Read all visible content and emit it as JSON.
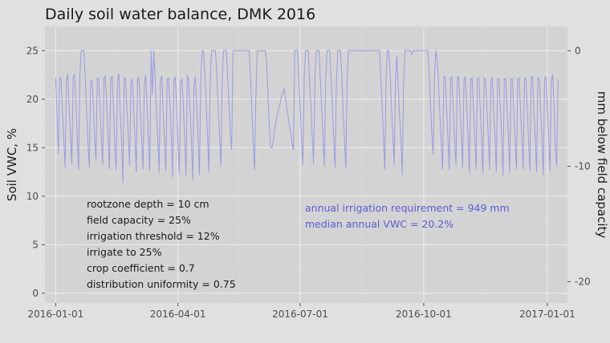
{
  "chart_data": {
    "type": "line",
    "title": "Daily soil water balance,   DMK 2016",
    "xlabel": "",
    "ylabel": "Soil VWC, %",
    "y2label": "mm below field capacity",
    "x_ticks": [
      "2016-01-01",
      "2016-04-01",
      "2016-07-01",
      "2016-10-01",
      "2017-01-01"
    ],
    "y_ticks": [
      0,
      5,
      10,
      15,
      20,
      25
    ],
    "y2_ticks": [
      0,
      -10,
      -20
    ],
    "xlim": [
      "2015-12-24",
      "2017-01-16"
    ],
    "ylim": [
      -1,
      27.5
    ],
    "y2_mapping": "y2 = (VWC - 25) * 0.84",
    "grid": true,
    "line_color": "#9a9ae6",
    "annotations_left": [
      "rootzone depth = 10 cm",
      "field capacity = 25%",
      "irrigation threshold = 12%",
      "irrigate to 25%",
      "crop coefficient = 0.7",
      "distribution uniformity = 0.75"
    ],
    "annotations_right": [
      "annual irrigation requirement = 949 mm",
      "median annual VWC = 20.2%"
    ],
    "annotation_right_color": "#5c5cd6",
    "series": [
      {
        "x_start": "2016-01-01",
        "x_end": "2016-12-31",
        "values": [
          22.2,
          18.4,
          14.4,
          22.2,
          22.2,
          18.9,
          16,
          13,
          21.9,
          22.6,
          19.2,
          16.4,
          13.3,
          22.2,
          22.6,
          19.7,
          16.3,
          12.7,
          22.5,
          25,
          25,
          25,
          22.2,
          18.8,
          15.7,
          12.9,
          21.9,
          21.9,
          19.7,
          16.1,
          13.7,
          22.2,
          22,
          19.4,
          15.7,
          13.3,
          22.2,
          22.4,
          19.3,
          16.3,
          12.8,
          22.1,
          22.4,
          19.2,
          15.3,
          12.7,
          21.9,
          22.6,
          18.8,
          15.9,
          11.4,
          22.2,
          22.1,
          19.1,
          16.4,
          13.2,
          21.7,
          22.1,
          19.3,
          16.1,
          12.5,
          22.2,
          22.2,
          19,
          15.9,
          12.8,
          21.4,
          22.5,
          19.4,
          16,
          12.6,
          25,
          20.5,
          25,
          22.2,
          18.8,
          15.8,
          12.5,
          21.9,
          22.4,
          18.6,
          15.9,
          12.6,
          22,
          22.2,
          19.5,
          16.5,
          12,
          21.9,
          22.3,
          19.4,
          15.6,
          12.3,
          21.8,
          22.1,
          19.4,
          16,
          12.1,
          22.5,
          22,
          18.9,
          16,
          11.7,
          21.4,
          22.3,
          19.4,
          15.9,
          12.2,
          22.1,
          25,
          25,
          22.8,
          19.6,
          16.4,
          12.5,
          21.6,
          25,
          25,
          25,
          25,
          22.3,
          19,
          16.1,
          13.1,
          22.3,
          25,
          25,
          25,
          22.4,
          19.5,
          16.5,
          14.8,
          25,
          25,
          25,
          25,
          25,
          25,
          25,
          25,
          25,
          25,
          25,
          25,
          25,
          22.3,
          19.2,
          15.7,
          12.7,
          20.1,
          25,
          25,
          25,
          25,
          25,
          25,
          25,
          23.9,
          20.6,
          17.3,
          15,
          15,
          15.7,
          16.8,
          17.7,
          18.4,
          19,
          19.5,
          20.2,
          20.6,
          21.1,
          20.2,
          19.1,
          18.3,
          17.2,
          16.5,
          15.4,
          14.8,
          25,
          25,
          25,
          22.3,
          19.3,
          15.8,
          13.2,
          22.1,
          25,
          25,
          25,
          22,
          19.3,
          16.1,
          13.4,
          22.3,
          25,
          25,
          25,
          22.2,
          19.2,
          16.1,
          13.1,
          22.1,
          25,
          25,
          25,
          22.2,
          19.3,
          15.9,
          13,
          21.9,
          25,
          25,
          25,
          22.4,
          18.8,
          15.8,
          12.9,
          22.1,
          25,
          25,
          25,
          25,
          25,
          25,
          25,
          25,
          25,
          25,
          25,
          25,
          25,
          25,
          25,
          25,
          25,
          25,
          25,
          25,
          25,
          25,
          25,
          25,
          22.5,
          19.4,
          16.3,
          12.7,
          22.3,
          25,
          25,
          22.5,
          19.2,
          16.1,
          13.3,
          22,
          24.5,
          21.3,
          18.4,
          15.8,
          12.2,
          21.6,
          25,
          25,
          25,
          25,
          25,
          24.6,
          25,
          25,
          25,
          25,
          25,
          25,
          25,
          25,
          25,
          25,
          25,
          25,
          22.9,
          19.6,
          16.5,
          14.3,
          22.3,
          25,
          24.1,
          21.7,
          18.5,
          15.7,
          12.8,
          22.4,
          22.3,
          19.2,
          16,
          12.7,
          22.1,
          22.3,
          19,
          15.7,
          13.2,
          22.3,
          22.3,
          19.2,
          16.4,
          12.9,
          22.1,
          22.3,
          19.2,
          16.3,
          12.4,
          22.1,
          22.2,
          19.3,
          15.9,
          12.8,
          22.1,
          22.2,
          19.2,
          16.2,
          12.4,
          22.2,
          22,
          19.2,
          16.3,
          12.7,
          22.1,
          22.2,
          19,
          16.1,
          12.5,
          22.1,
          22.1,
          19.2,
          16.2,
          12.1,
          22.1,
          22.1,
          19.1,
          16.3,
          12.5,
          22.1,
          22.1,
          19,
          15.9,
          12.8,
          22.1,
          22.2,
          19.1,
          16.2,
          12.8,
          22.1,
          22.2,
          19.4,
          15.7,
          12.6,
          22.1,
          22.4,
          18.8,
          16,
          12.5,
          22.2,
          22.1,
          19.1,
          16,
          12.1,
          22.2,
          22.3,
          19.1,
          16,
          12.6,
          22,
          22.5,
          19.4,
          14.7,
          13.1,
          22
        ]
      }
    ]
  }
}
